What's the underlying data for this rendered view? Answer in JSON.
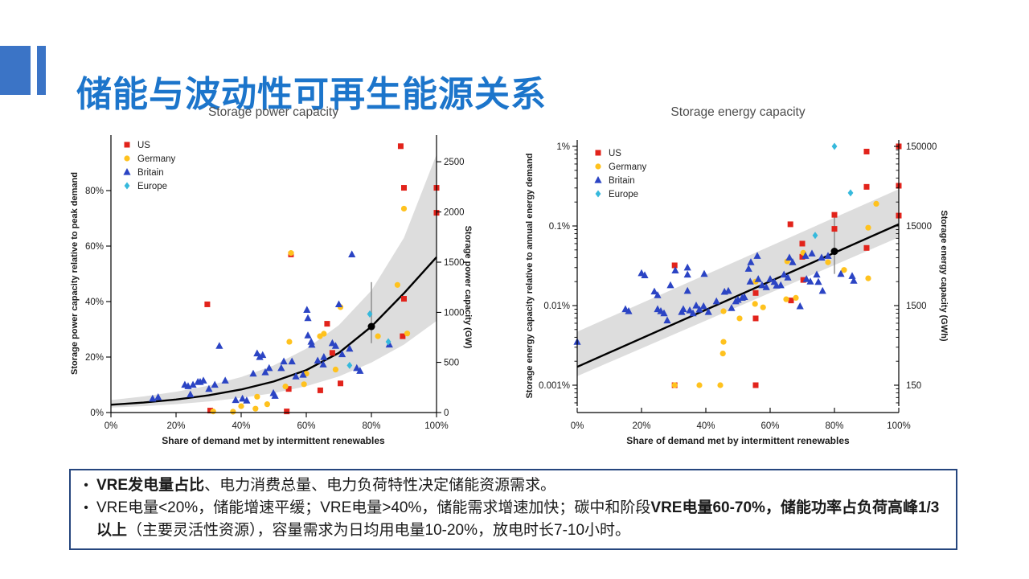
{
  "slide": {
    "title": "储能与波动性可再生能源关系",
    "accent_color": "#3B74C6",
    "title_color": "#1C75CB"
  },
  "notes_box": {
    "border_color": "#26467E",
    "bullet_glyph": "•",
    "bullets": [
      {
        "segments": [
          {
            "text": "VRE发电量占比",
            "bold": true
          },
          {
            "text": "、电力消费总量、电力负荷特性决定储能资源需求。",
            "bold": false
          }
        ]
      },
      {
        "segments": [
          {
            "text": "VRE电量<20%，储能增速平缓；VRE电量>40%，储能需求增速加快；碳中和阶段",
            "bold": false
          },
          {
            "text": "VRE电量60-70%，储能功率占负荷高峰1/3以上",
            "bold": true
          },
          {
            "text": "（主要灵活性资源），容量需求为日均用电量10-20%，放电时长7-10小时。",
            "bold": false
          }
        ]
      }
    ]
  },
  "colors": {
    "us": "#E2231B",
    "germany": "#FFC21E",
    "britain": "#2B44C4",
    "europe": "#36B9DC",
    "band": "#D9D9D9",
    "trend": "#000000",
    "error_bar": "#888888",
    "title_text": "#4d4d4d"
  },
  "chart_data": [
    {
      "type": "scatter",
      "title": "Storage power capacity",
      "xlabel": "Share of demand met by intermittent renewables",
      "ylabel_left": "Storage power capacity relative to peak demand",
      "ylabel_right": "Storage power capacity (GW)",
      "y_scale": "linear",
      "xlim": [
        0,
        100
      ],
      "ylim": [
        0,
        100
      ],
      "x_ticks": [
        [
          "0%",
          0
        ],
        [
          "20%",
          20
        ],
        [
          "40%",
          40
        ],
        [
          "60%",
          60
        ],
        [
          "80%",
          80
        ],
        [
          "100%",
          100
        ]
      ],
      "y_ticks_left": [
        [
          "0%",
          0
        ],
        [
          "20%",
          20
        ],
        [
          "40%",
          40
        ],
        [
          "60%",
          60
        ],
        [
          "80%",
          80
        ]
      ],
      "y_ticks_right": [
        [
          "0",
          0
        ],
        [
          "500",
          18.1
        ],
        [
          "1000",
          36.1
        ],
        [
          "1500",
          54.2
        ],
        [
          "2000",
          72.3
        ],
        [
          "2500",
          90.4
        ]
      ],
      "legend": [
        {
          "name": "US",
          "marker": "square",
          "color": "#E2231B"
        },
        {
          "name": "Germany",
          "marker": "circle",
          "color": "#FFC21E"
        },
        {
          "name": "Britain",
          "marker": "triangle",
          "color": "#2B44C4"
        },
        {
          "name": "Europe",
          "marker": "diamond",
          "color": "#36B9DC"
        }
      ],
      "band": {
        "x": [
          0,
          10,
          20,
          30,
          40,
          50,
          60,
          70,
          80,
          90,
          100
        ],
        "lower": [
          1.8,
          2.3,
          3,
          4,
          5.3,
          7,
          9.5,
          13,
          18,
          24.5,
          33
        ],
        "upper": [
          4.5,
          5.8,
          7.5,
          9.7,
          12.8,
          17,
          23,
          31.5,
          44,
          63,
          93
        ]
      },
      "trend": {
        "x": [
          0,
          10,
          20,
          30,
          40,
          50,
          60,
          70,
          80,
          90,
          100
        ],
        "y": [
          2.8,
          3.6,
          4.7,
          6.2,
          8.3,
          11.2,
          15.3,
          21.5,
          31,
          43,
          56
        ]
      },
      "marker_point": {
        "x": 80,
        "y": 31,
        "err_low": 25,
        "err_high": 47
      },
      "series": [
        {
          "name": "US",
          "marker": "square",
          "color": "#E2231B",
          "points": [
            [
              29.6,
              39
            ],
            [
              30.5,
              0.7
            ],
            [
              54,
              0.4
            ],
            [
              54.6,
              8.5
            ],
            [
              55.3,
              57
            ],
            [
              64.3,
              8
            ],
            [
              66.4,
              32
            ],
            [
              68,
              21.5
            ],
            [
              70.5,
              10.5
            ],
            [
              89,
              96
            ],
            [
              89.6,
              27.5
            ],
            [
              90,
              81
            ],
            [
              90,
              41
            ],
            [
              100,
              81
            ],
            [
              100,
              72
            ]
          ]
        },
        {
          "name": "Germany",
          "marker": "circle",
          "color": "#FFC21E",
          "points": [
            [
              31.4,
              0.4
            ],
            [
              37.5,
              0.3
            ],
            [
              40,
              2.3
            ],
            [
              44.4,
              1.4
            ],
            [
              44.9,
              5.7
            ],
            [
              48,
              3
            ],
            [
              53.6,
              9.4
            ],
            [
              54.8,
              25.5
            ],
            [
              55.3,
              57.5
            ],
            [
              59.3,
              10.2
            ],
            [
              60,
              14
            ],
            [
              64.2,
              27.5
            ],
            [
              65.4,
              28.4
            ],
            [
              69,
              15.5
            ],
            [
              70.5,
              38
            ],
            [
              82,
              27.5
            ],
            [
              88,
              46
            ],
            [
              90,
              73.5
            ],
            [
              91,
              28.5
            ]
          ]
        },
        {
          "name": "Britain",
          "marker": "triangle",
          "color": "#2B44C4",
          "points": [
            [
              12.8,
              5
            ],
            [
              14.5,
              5.5
            ],
            [
              22.7,
              10
            ],
            [
              23.7,
              9.5
            ],
            [
              24.4,
              6.5
            ],
            [
              25.2,
              10
            ],
            [
              26.7,
              11
            ],
            [
              27.4,
              11
            ],
            [
              28.4,
              11.5
            ],
            [
              30.1,
              8.5
            ],
            [
              31.9,
              10
            ],
            [
              33.3,
              24
            ],
            [
              35.1,
              11.5
            ],
            [
              38.3,
              4.5
            ],
            [
              40.4,
              5
            ],
            [
              41.7,
              4.3
            ],
            [
              43.7,
              14
            ],
            [
              44.9,
              21.3
            ],
            [
              45.7,
              20
            ],
            [
              46.6,
              20.7
            ],
            [
              47.4,
              14.5
            ],
            [
              48.6,
              16
            ],
            [
              49.9,
              7
            ],
            [
              50.4,
              6
            ],
            [
              52.3,
              16
            ],
            [
              53.1,
              18.4
            ],
            [
              55.6,
              18.4
            ],
            [
              56.8,
              13
            ],
            [
              59,
              13.6
            ],
            [
              60.2,
              37
            ],
            [
              60.5,
              34
            ],
            [
              60.5,
              27.8
            ],
            [
              61.5,
              25.5
            ],
            [
              61.7,
              24.4
            ],
            [
              63.5,
              18.7
            ],
            [
              65.2,
              17.3
            ],
            [
              65.4,
              20
            ],
            [
              68,
              25
            ],
            [
              69,
              24
            ],
            [
              70,
              39
            ],
            [
              71,
              21
            ],
            [
              73.3,
              23
            ],
            [
              74,
              57
            ],
            [
              75.5,
              16
            ],
            [
              76.5,
              15
            ],
            [
              85.5,
              24.5
            ]
          ]
        },
        {
          "name": "Europe",
          "marker": "diamond",
          "color": "#36B9DC",
          "points": [
            [
              73.3,
              17
            ],
            [
              79.5,
              35.5
            ],
            [
              85.2,
              25.5
            ]
          ]
        }
      ]
    },
    {
      "type": "scatter",
      "title": "Storage energy capacity",
      "xlabel": "Share of demand met by intermittent renewables",
      "ylabel_left": "Storage energy capacity relative to annual energy demand",
      "ylabel_right": "Storage energy capacity (GWh)",
      "y_scale": "log",
      "xlim": [
        0,
        100
      ],
      "ylim": [
        0.001,
        1
      ],
      "x_ticks": [
        [
          "0%",
          0
        ],
        [
          "20%",
          20
        ],
        [
          "40%",
          40
        ],
        [
          "60%",
          60
        ],
        [
          "80%",
          80
        ],
        [
          "100%",
          100
        ]
      ],
      "y_ticks_left": [
        [
          "1%",
          1
        ],
        [
          "0.1%",
          0.1
        ],
        [
          "0.01%",
          0.01
        ],
        [
          "0.001%",
          0.001
        ]
      ],
      "y_ticks_right": [
        [
          "150000",
          1
        ],
        [
          "15000",
          0.1
        ],
        [
          "1500",
          0.01
        ],
        [
          "150",
          0.001
        ]
      ],
      "legend": [
        {
          "name": "US",
          "marker": "square",
          "color": "#E2231B"
        },
        {
          "name": "Germany",
          "marker": "circle",
          "color": "#FFC21E"
        },
        {
          "name": "Britain",
          "marker": "triangle",
          "color": "#2B44C4"
        },
        {
          "name": "Europe",
          "marker": "diamond",
          "color": "#36B9DC"
        }
      ],
      "band": {
        "x": [
          0,
          100
        ],
        "lower": [
          0.0013,
          0.072
        ],
        "upper": [
          0.0047,
          0.29
        ]
      },
      "trend": {
        "x": [
          0,
          100
        ],
        "y": [
          0.0017,
          0.105
        ]
      },
      "marker_point": {
        "x": 80,
        "y": 0.048,
        "err_low": 0.025,
        "err_high": 0.135
      },
      "series": [
        {
          "name": "US",
          "marker": "square",
          "color": "#E2231B",
          "points": [
            [
              30.3,
              0.032
            ],
            [
              30.3,
              0.001
            ],
            [
              55.5,
              0.0144
            ],
            [
              55.5,
              0.0069
            ],
            [
              55.5,
              0.001
            ],
            [
              66.3,
              0.105
            ],
            [
              66.5,
              0.0116
            ],
            [
              70,
              0.06
            ],
            [
              70,
              0.041
            ],
            [
              70.3,
              0.021
            ],
            [
              80,
              0.138
            ],
            [
              80,
              0.092
            ],
            [
              90,
              0.86
            ],
            [
              90,
              0.31
            ],
            [
              90,
              0.053
            ],
            [
              100,
              1.0
            ],
            [
              100,
              0.32
            ],
            [
              100,
              0.135
            ]
          ]
        },
        {
          "name": "Germany",
          "marker": "circle",
          "color": "#FFC21E",
          "points": [
            [
              30.3,
              0.001
            ],
            [
              38,
              0.001
            ],
            [
              44.5,
              0.001
            ],
            [
              45.3,
              0.0025
            ],
            [
              45.5,
              0.0035
            ],
            [
              45.5,
              0.0085
            ],
            [
              50.5,
              0.0069
            ],
            [
              55.3,
              0.0105
            ],
            [
              55.5,
              0.02
            ],
            [
              57.8,
              0.0095
            ],
            [
              65,
              0.012
            ],
            [
              65.3,
              0.036
            ],
            [
              68,
              0.0125
            ],
            [
              70.3,
              0.046
            ],
            [
              78,
              0.035
            ],
            [
              83,
              0.028
            ],
            [
              90.5,
              0.095
            ],
            [
              90.5,
              0.022
            ],
            [
              93,
              0.19
            ]
          ]
        },
        {
          "name": "Britain",
          "marker": "triangle",
          "color": "#2B44C4",
          "points": [
            [
              0,
              0.0035
            ],
            [
              15,
              0.009
            ],
            [
              16,
              0.0085
            ],
            [
              20,
              0.0255
            ],
            [
              21,
              0.024
            ],
            [
              24,
              0.015
            ],
            [
              25,
              0.0135
            ],
            [
              25,
              0.009
            ],
            [
              26,
              0.0085
            ],
            [
              27,
              0.008
            ],
            [
              28,
              0.0065
            ],
            [
              29,
              0.018
            ],
            [
              30.5,
              0.0276
            ],
            [
              32.5,
              0.0083
            ],
            [
              33,
              0.009
            ],
            [
              34.3,
              0.03
            ],
            [
              34.3,
              0.0245
            ],
            [
              34.3,
              0.0153
            ],
            [
              35,
              0.0087
            ],
            [
              36,
              0.008
            ],
            [
              37,
              0.01
            ],
            [
              38,
              0.0089
            ],
            [
              39.3,
              0.0098
            ],
            [
              39.5,
              0.025
            ],
            [
              40.8,
              0.0083
            ],
            [
              43.3,
              0.0113
            ],
            [
              45.8,
              0.0149
            ],
            [
              47,
              0.0153
            ],
            [
              48,
              0.0093
            ],
            [
              49.3,
              0.0113
            ],
            [
              50,
              0.0118
            ],
            [
              51.3,
              0.0125
            ],
            [
              52,
              0.0128
            ],
            [
              53.3,
              0.029
            ],
            [
              53.8,
              0.02
            ],
            [
              54,
              0.035
            ],
            [
              56,
              0.042
            ],
            [
              56.3,
              0.0215
            ],
            [
              57.5,
              0.018
            ],
            [
              58.8,
              0.017
            ],
            [
              60,
              0.0215
            ],
            [
              61.3,
              0.0198
            ],
            [
              62,
              0.0178
            ],
            [
              63.3,
              0.018
            ],
            [
              64.3,
              0.0245
            ],
            [
              65.5,
              0.0225
            ],
            [
              66,
              0.04
            ],
            [
              67,
              0.035
            ],
            [
              69.3,
              0.0098
            ],
            [
              71,
              0.042
            ],
            [
              71.3,
              0.0215
            ],
            [
              72.5,
              0.02
            ],
            [
              73,
              0.045
            ],
            [
              74.5,
              0.0245
            ],
            [
              75,
              0.0198
            ],
            [
              76.3,
              0.0153
            ],
            [
              76,
              0.04
            ],
            [
              78,
              0.042
            ],
            [
              82,
              0.025
            ],
            [
              85.5,
              0.0235
            ],
            [
              86,
              0.0205
            ]
          ]
        },
        {
          "name": "Europe",
          "marker": "diamond",
          "color": "#36B9DC",
          "points": [
            [
              74,
              0.076
            ],
            [
              80,
              1.0
            ],
            [
              85,
              0.26
            ]
          ]
        }
      ]
    }
  ]
}
